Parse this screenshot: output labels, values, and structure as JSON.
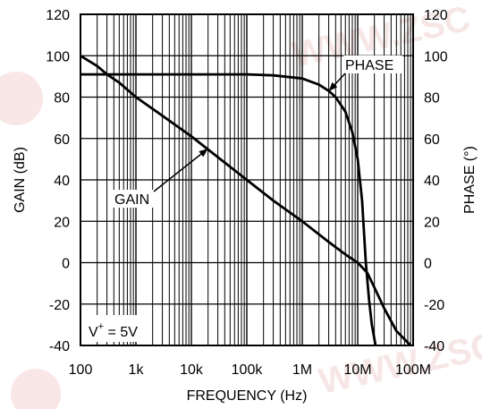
{
  "chart_data": {
    "type": "line",
    "title": "",
    "xlabel": "FREQUENCY (Hz)",
    "ylabel_left": "GAIN (dB)",
    "ylabel_right": "PHASE (°)",
    "x_scale": "log",
    "xlim": [
      100,
      100000000
    ],
    "ylim_left": [
      -40,
      120
    ],
    "ylim_right": [
      -40,
      120
    ],
    "grid": true,
    "x_ticks": [
      {
        "value": 100,
        "label": "100"
      },
      {
        "value": 1000,
        "label": "1k"
      },
      {
        "value": 10000,
        "label": "10k"
      },
      {
        "value": 100000,
        "label": "100k"
      },
      {
        "value": 1000000,
        "label": "1M"
      },
      {
        "value": 10000000,
        "label": "10M"
      },
      {
        "value": 100000000,
        "label": "100M"
      }
    ],
    "y_ticks_left": [
      "-40",
      "-20",
      "0",
      "20",
      "40",
      "60",
      "80",
      "100",
      "120"
    ],
    "y_ticks_right": [
      "-40",
      "-20",
      "0",
      "20",
      "40",
      "60",
      "80",
      "100",
      "120"
    ],
    "series": [
      {
        "name": "GAIN",
        "axis": "left",
        "points": [
          [
            100,
            100
          ],
          [
            200,
            95
          ],
          [
            300,
            91
          ],
          [
            500,
            87
          ],
          [
            1000,
            80
          ],
          [
            3000,
            71
          ],
          [
            10000,
            61
          ],
          [
            30000,
            51
          ],
          [
            100000,
            40
          ],
          [
            300000,
            30
          ],
          [
            1000000,
            20
          ],
          [
            3000000,
            10
          ],
          [
            6000000,
            4
          ],
          [
            10000000,
            0
          ],
          [
            15000000,
            -5
          ],
          [
            20000000,
            -12
          ],
          [
            30000000,
            -22
          ],
          [
            50000000,
            -33
          ],
          [
            90000000,
            -40
          ]
        ]
      },
      {
        "name": "PHASE",
        "axis": "right",
        "points": [
          [
            100,
            91
          ],
          [
            1000,
            91
          ],
          [
            100000,
            91
          ],
          [
            300000,
            90.5
          ],
          [
            1000000,
            89
          ],
          [
            2000000,
            86
          ],
          [
            3000000,
            83
          ],
          [
            4000000,
            80
          ],
          [
            6000000,
            73
          ],
          [
            8000000,
            63
          ],
          [
            10000000,
            50
          ],
          [
            12000000,
            30
          ],
          [
            14000000,
            0
          ],
          [
            16000000,
            -18
          ],
          [
            18000000,
            -30
          ],
          [
            21000000,
            -40
          ]
        ]
      }
    ],
    "annotations": [
      {
        "text": "PHASE",
        "target_series": "PHASE",
        "arrow_to": [
          3000000,
          82
        ]
      },
      {
        "text": "GAIN",
        "target_series": "GAIN",
        "arrow_to": [
          20000,
          56
        ]
      }
    ],
    "inset_label": {
      "text_main": "V",
      "superscript": "+",
      "text_rest": " = 5V"
    }
  }
}
